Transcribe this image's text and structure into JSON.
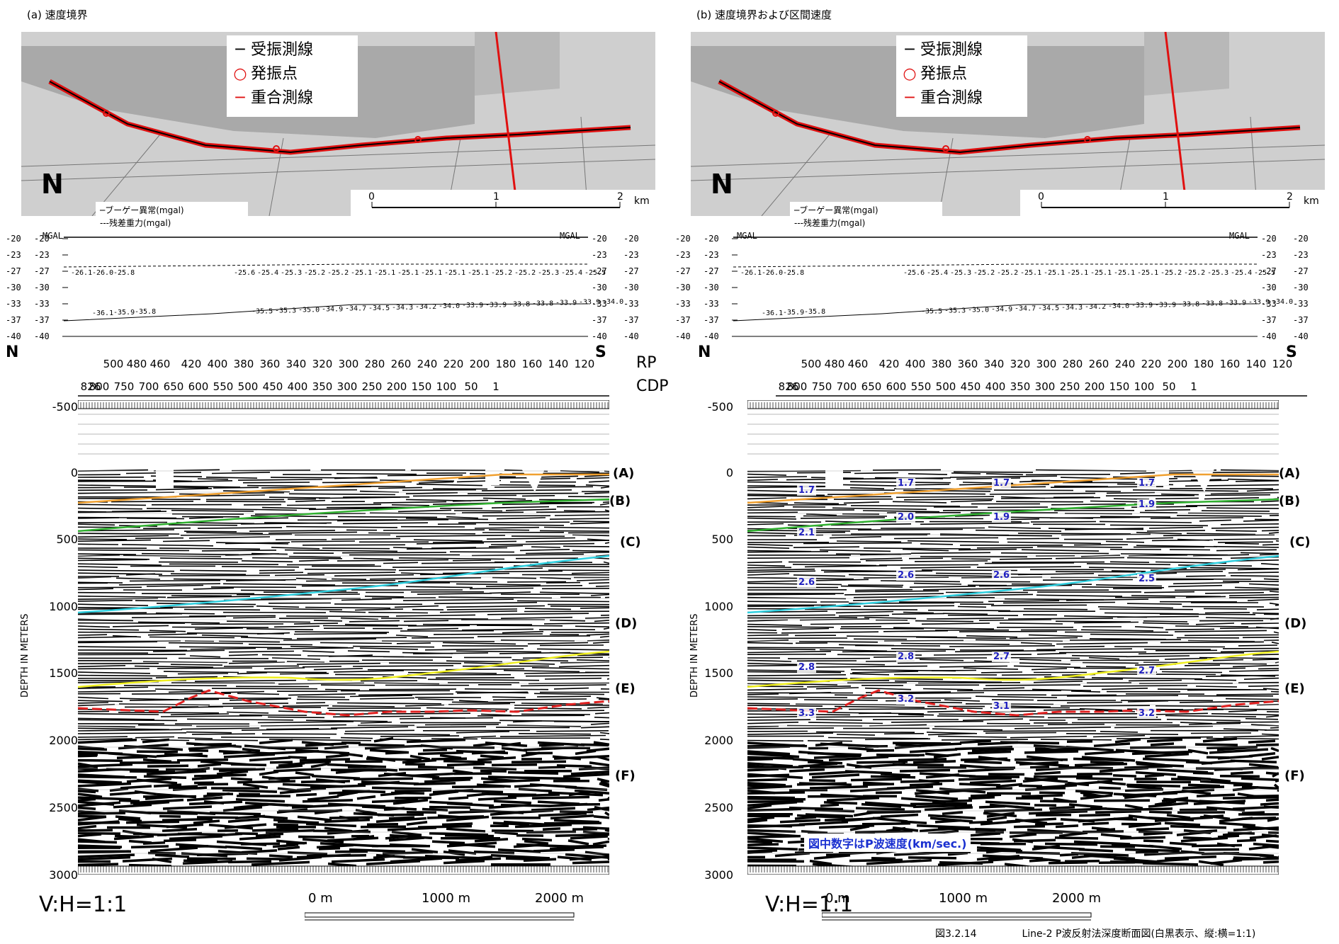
{
  "panels": [
    {
      "id": "a",
      "title": "(a) 速度境界",
      "show_velocities": false
    },
    {
      "id": "b",
      "title": "(b) 速度境界および区間速度",
      "show_velocities": true
    }
  ],
  "map": {
    "legend": {
      "receiver": "受振測線",
      "source": "発振点",
      "stack": "重合測線"
    },
    "scale_labels": [
      "0",
      "1",
      "2"
    ],
    "scale_unit": "km",
    "north": "N",
    "line_labels": [
      "750",
      "700",
      "650",
      "600",
      "550",
      "500",
      "450",
      "400",
      "350",
      "300",
      "250",
      "200",
      "150",
      "100",
      "50",
      "1"
    ]
  },
  "gravity": {
    "legend_bouguer": "ブーゲー異常(mgal)",
    "legend_residual": "残差重力(mgal)",
    "unit_label": "MGAL",
    "y_ticks": [
      "-20",
      "-23",
      "-27",
      "-30",
      "-33",
      "-37",
      "-40"
    ],
    "residual_values": [
      "-26.1",
      "-26.0",
      "-25.8",
      "-25.6",
      "-25.4",
      "-25.3",
      "-25.2",
      "-25.2",
      "-25.1",
      "-25.1",
      "-25.1",
      "-25.1",
      "-25.1",
      "-25.1",
      "-25.2",
      "-25.2",
      "-25.3",
      "-25.4",
      "-25.5"
    ],
    "bouguer_values": [
      "-36.1",
      "-35.9",
      "-35.8",
      "-35.5",
      "-35.3",
      "-35.0",
      "-34.9",
      "-34.7",
      "-34.5",
      "-34.3",
      "-34.2",
      "-34.0",
      "-33.9",
      "-33.9",
      "-33.8",
      "-33.8",
      "-33.9",
      "-33.9",
      "-34.0"
    ]
  },
  "section": {
    "north": "N",
    "south": "S",
    "rp_label": "RP",
    "cdp_label": "CDP",
    "rp_ticks": [
      "500",
      "480",
      "460",
      "420",
      "400",
      "380",
      "360",
      "340",
      "320",
      "300",
      "280",
      "260",
      "240",
      "220",
      "200",
      "180",
      "160",
      "140",
      "120"
    ],
    "cdp_ticks": [
      "826",
      "800",
      "750",
      "700",
      "650",
      "600",
      "550",
      "500",
      "450",
      "400",
      "350",
      "300",
      "250",
      "200",
      "150",
      "100",
      "50",
      "1"
    ],
    "depth_ticks": [
      "-500",
      "0",
      "500",
      "1000",
      "1500",
      "2000",
      "2500",
      "3000"
    ],
    "depth_axis_title": "DEPTH IN METERS",
    "horizons": [
      "(A)",
      "(B)",
      "(C)",
      "(D)",
      "(E)",
      "(F)"
    ],
    "horizon_colors": {
      "B": "#f0a030",
      "C": "#30b030",
      "D": "#30d0e0",
      "E": "#f0f020",
      "F": "#e02020"
    },
    "vh_ratio": "V:H=1:1",
    "scale_bottom": [
      "0 m",
      "1000 m",
      "2000 m"
    ]
  },
  "velocities": [
    {
      "value": "1.7"
    },
    {
      "value": "1.7"
    },
    {
      "value": "1.7"
    },
    {
      "value": "1.7"
    },
    {
      "value": "1.9"
    },
    {
      "value": "2.0"
    },
    {
      "value": "1.9"
    },
    {
      "value": "2.1"
    },
    {
      "value": "2.6"
    },
    {
      "value": "2.6"
    },
    {
      "value": "2.6"
    },
    {
      "value": "2.5"
    },
    {
      "value": "2.8"
    },
    {
      "value": "2.8"
    },
    {
      "value": "2.7"
    },
    {
      "value": "2.7"
    },
    {
      "value": "3.3"
    },
    {
      "value": "3.2"
    },
    {
      "value": "3.1"
    },
    {
      "value": "3.2"
    }
  ],
  "velocity_note": "図中数字はP波速度(km/sec.)",
  "caption": {
    "number": "図3.2.14",
    "text": "Line-2 P波反射法深度断面図(白黒表示、縦:横=1:1)"
  }
}
